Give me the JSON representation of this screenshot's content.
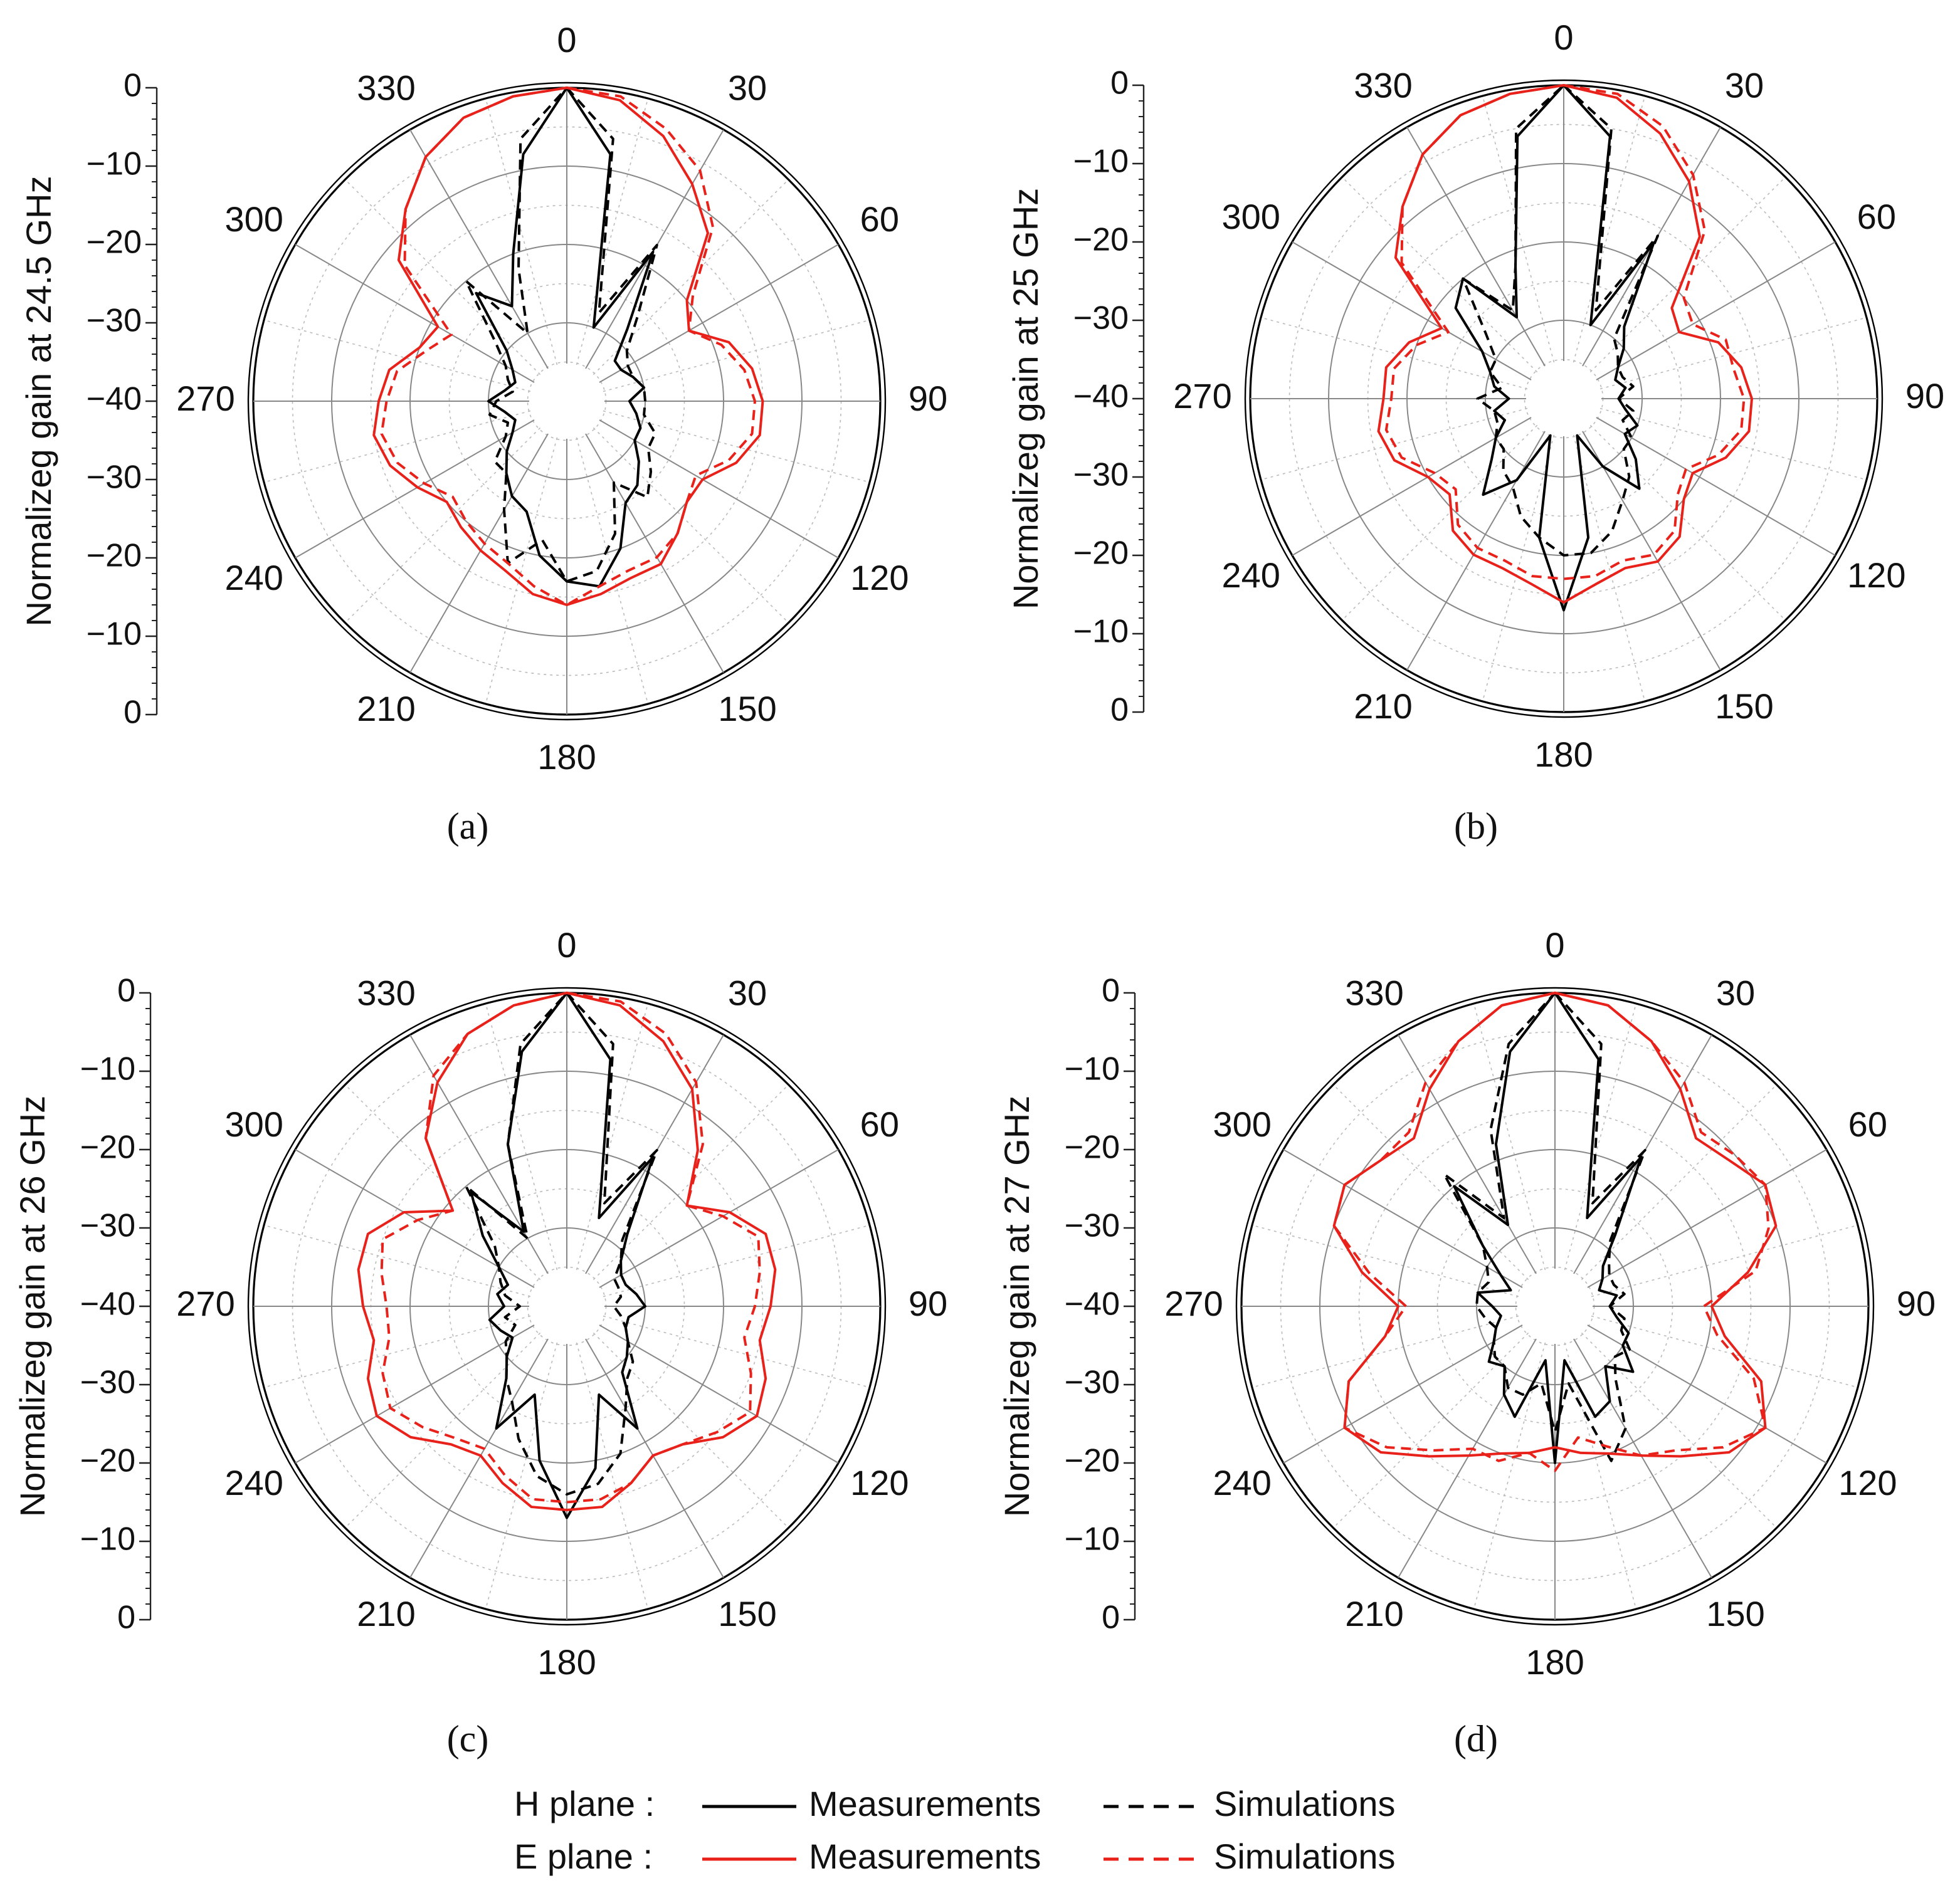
{
  "chart_data": [
    {
      "type": "polar",
      "ylabel": "Normalizeg gain at 24.5 GHz",
      "caption": "(a)",
      "rlim": [
        -40,
        0
      ],
      "rticks": [
        {
          "value": -40,
          "label": "−40"
        },
        {
          "value": -30,
          "label": "−30"
        },
        {
          "value": -20,
          "label": "−20"
        },
        {
          "value": -10,
          "label": "−10"
        },
        0
      ],
      "thetaticks": [
        0,
        30,
        60,
        90,
        120,
        150,
        180,
        210,
        240,
        270,
        300,
        330
      ],
      "theta": [
        0,
        10,
        20,
        30,
        40,
        50,
        60,
        70,
        80,
        90,
        100,
        110,
        120,
        130,
        140,
        150,
        160,
        170,
        180,
        190,
        200,
        210,
        220,
        230,
        240,
        250,
        260,
        270,
        280,
        290,
        300,
        310,
        320,
        330,
        340,
        350
      ],
      "series": [
        {
          "color": "#000000",
          "dash": false,
          "values": [
            0,
            -8,
            -30,
            -18,
            -28,
            -32,
            -32,
            -31,
            -30,
            -32,
            -31,
            -30,
            -30,
            -28,
            -26,
            -25,
            -20,
            -16,
            -17,
            -20,
            -25,
            -26,
            -28,
            -30,
            -32,
            -33,
            -32,
            -30,
            -32,
            -33,
            -32,
            -30,
            -22,
            -26,
            -20,
            -8
          ]
        },
        {
          "color": "#000000",
          "dash": true,
          "values": [
            0,
            -6,
            -28,
            -17,
            -26,
            -30,
            -31,
            -31,
            -30,
            -30,
            -30,
            -28,
            -28,
            -26,
            -24,
            -28,
            -22,
            -18,
            -17,
            -22,
            -18,
            -24,
            -28,
            -28,
            -31,
            -32,
            -30,
            -31,
            -33,
            -32,
            -31,
            -28,
            -20,
            -30,
            -22,
            -6
          ]
        },
        {
          "color": "#e8221a",
          "dash": false,
          "values": [
            0,
            -1,
            -4,
            -8,
            -12,
            -20,
            -22,
            -18,
            -16,
            -15,
            -15,
            -17,
            -20,
            -20,
            -18,
            -16,
            -16,
            -15,
            -14,
            -15,
            -17,
            -18,
            -19,
            -20,
            -18,
            -16,
            -15,
            -16,
            -17,
            -20,
            -21,
            -12,
            -8,
            -4,
            -1.5,
            -0.5
          ]
        },
        {
          "color": "#e8221a",
          "dash": true,
          "values": [
            0,
            -0.5,
            -3,
            -6,
            -11,
            -19,
            -22,
            -19,
            -17,
            -16,
            -16,
            -18,
            -21,
            -20,
            -18,
            -17,
            -17,
            -16,
            -14,
            -16,
            -18,
            -19,
            -20,
            -21,
            -19,
            -17,
            -16,
            -17,
            -18,
            -21,
            -23,
            -13,
            -8,
            -4,
            -1.5,
            -0.5
          ]
        }
      ]
    },
    {
      "type": "polar",
      "ylabel": "Normalizeg gain at 25 GHz",
      "caption": "(b)",
      "rlim": [
        -40,
        0
      ],
      "rticks": [
        {
          "value": -40,
          "label": "−40"
        },
        {
          "value": -30,
          "label": "−30"
        },
        {
          "value": -20,
          "label": "−20"
        },
        {
          "value": -10,
          "label": "−10"
        },
        0
      ],
      "thetaticks": [
        0,
        30,
        60,
        90,
        120,
        150,
        180,
        210,
        240,
        270,
        300,
        330
      ],
      "theta": [
        0,
        10,
        20,
        30,
        40,
        50,
        60,
        70,
        80,
        90,
        100,
        110,
        120,
        130,
        140,
        150,
        160,
        170,
        180,
        190,
        200,
        210,
        220,
        230,
        240,
        250,
        260,
        270,
        280,
        290,
        300,
        310,
        320,
        330,
        340,
        350
      ],
      "series": [
        {
          "color": "#000000",
          "dash": false,
          "values": [
            0,
            -6,
            -30,
            -17,
            -28,
            -30,
            -32,
            -33,
            -32,
            -33,
            -32,
            -30,
            -31,
            -28,
            -25,
            -30,
            -35,
            -22,
            -13,
            -22,
            -35,
            -28,
            -24,
            -28,
            -30,
            -32,
            -31,
            -33,
            -31,
            -30,
            -28,
            -22,
            -20,
            -28,
            -22,
            -6
          ]
        },
        {
          "color": "#000000",
          "dash": true,
          "values": [
            0,
            -5,
            -28,
            -16,
            -30,
            -31,
            -32,
            -32,
            -31,
            -33,
            -31,
            -32,
            -30,
            -30,
            -27,
            -25,
            -22,
            -20,
            -20,
            -22,
            -24,
            -27,
            -28,
            -30,
            -30,
            -31,
            -31,
            -29,
            -32,
            -30,
            -30,
            -27,
            -20,
            -27,
            -22,
            -5
          ]
        },
        {
          "color": "#e8221a",
          "dash": false,
          "values": [
            0,
            -1,
            -4,
            -8,
            -13,
            -22,
            -23,
            -19,
            -17,
            -16,
            -16,
            -18,
            -21,
            -20,
            -17,
            -16,
            -17,
            -16,
            -14,
            -16,
            -17,
            -17,
            -18,
            -21,
            -20,
            -17,
            -16,
            -17,
            -17,
            -19,
            -22,
            -12,
            -8,
            -4,
            -1.5,
            -0.5
          ]
        },
        {
          "color": "#e8221a",
          "dash": true,
          "values": [
            0,
            -0.5,
            -3,
            -7,
            -12,
            -20,
            -21,
            -18,
            -18,
            -17,
            -17,
            -19,
            -22,
            -21,
            -18,
            -17,
            -18,
            -17,
            -17,
            -17,
            -18,
            -18,
            -19,
            -22,
            -21,
            -18,
            -17,
            -18,
            -18,
            -20,
            -23,
            -13,
            -8,
            -4,
            -1.5,
            -0.5
          ]
        }
      ]
    },
    {
      "type": "polar",
      "ylabel": "Normalizeg gain at 26 GHz",
      "caption": "(c)",
      "rlim": [
        -40,
        0
      ],
      "rticks": [
        {
          "value": -40,
          "label": "−40"
        },
        {
          "value": -30,
          "label": "−30"
        },
        {
          "value": -20,
          "label": "−20"
        },
        {
          "value": -10,
          "label": "−10"
        },
        0
      ],
      "thetaticks": [
        0,
        30,
        60,
        90,
        120,
        150,
        180,
        210,
        240,
        270,
        300,
        330
      ],
      "theta": [
        0,
        10,
        20,
        30,
        40,
        50,
        60,
        70,
        80,
        90,
        100,
        110,
        120,
        130,
        140,
        150,
        160,
        170,
        180,
        190,
        200,
        210,
        220,
        230,
        240,
        250,
        260,
        270,
        280,
        290,
        300,
        310,
        320,
        330,
        340,
        350
      ],
      "series": [
        {
          "color": "#000000",
          "dash": false,
          "values": [
            0,
            -8,
            -28,
            -18,
            -28,
            -31,
            -32,
            -32,
            -31,
            -30,
            -32,
            -32,
            -31,
            -30,
            -29,
            -22,
            -28,
            -19,
            -13,
            -20,
            -28,
            -22,
            -28,
            -30,
            -32,
            -31,
            -30,
            -32,
            -31,
            -32,
            -30,
            -26,
            -21,
            -29,
            -18,
            -7
          ]
        },
        {
          "color": "#000000",
          "dash": true,
          "values": [
            0,
            -6,
            -26,
            -17,
            -29,
            -31,
            -33,
            -33,
            -33,
            -34,
            -33,
            -32,
            -31,
            -29,
            -28,
            -25,
            -20,
            -17,
            -16,
            -18,
            -22,
            -26,
            -28,
            -30,
            -31,
            -33,
            -32,
            -34,
            -32,
            -31,
            -30,
            -28,
            -20,
            -30,
            -18,
            -6
          ]
        },
        {
          "color": "#e8221a",
          "dash": false,
          "values": [
            0,
            -1,
            -4,
            -8,
            -14,
            -20,
            -16,
            -13,
            -13,
            -14,
            -15,
            -13,
            -12,
            -14,
            -17,
            -18,
            -16,
            -14,
            -14,
            -14,
            -16,
            -18,
            -17,
            -14,
            -12,
            -13,
            -15,
            -14,
            -13,
            -13,
            -16,
            -21,
            -12,
            -7,
            -3,
            -1
          ]
        },
        {
          "color": "#e8221a",
          "dash": true,
          "values": [
            0,
            -0.5,
            -3,
            -7,
            -13,
            -20,
            -17,
            -14,
            -15,
            -16,
            -17,
            -15,
            -13,
            -15,
            -17,
            -18,
            -16,
            -15,
            -15,
            -15,
            -17,
            -19,
            -18,
            -16,
            -14,
            -15,
            -17,
            -17,
            -16,
            -15,
            -18,
            -21,
            -12,
            -6,
            -3,
            -1
          ]
        }
      ]
    },
    {
      "type": "polar",
      "ylabel": "Normalizeg gain at 27 GHz",
      "caption": "(d)",
      "rlim": [
        -40,
        0
      ],
      "rticks": [
        {
          "value": -40,
          "label": "−40"
        },
        {
          "value": -30,
          "label": "−30"
        },
        {
          "value": -20,
          "label": "−20"
        },
        {
          "value": -10,
          "label": "−10"
        },
        0
      ],
      "thetaticks": [
        0,
        30,
        60,
        90,
        120,
        150,
        180,
        210,
        240,
        270,
        300,
        330
      ],
      "theta": [
        0,
        10,
        20,
        30,
        40,
        50,
        60,
        70,
        80,
        90,
        100,
        110,
        120,
        130,
        140,
        150,
        160,
        170,
        180,
        190,
        200,
        210,
        220,
        230,
        240,
        250,
        260,
        270,
        280,
        290,
        300,
        310,
        320,
        330,
        340,
        350
      ],
      "series": [
        {
          "color": "#000000",
          "dash": false,
          "values": [
            0,
            -8,
            -28,
            -18,
            -28,
            -32,
            -33,
            -34,
            -32,
            -33,
            -32,
            -30,
            -30,
            -27,
            -30,
            -26,
            -25,
            -33,
            -20,
            -33,
            -25,
            -27,
            -30,
            -29,
            -31,
            -32,
            -33,
            -32,
            -30,
            -34,
            -32,
            -28,
            -20,
            -28,
            -18,
            -7
          ]
        },
        {
          "color": "#000000",
          "dash": true,
          "values": [
            0,
            -6,
            -26,
            -17,
            -29,
            -31,
            -32,
            -32,
            -31,
            -33,
            -31,
            -31,
            -29,
            -30,
            -28,
            -22,
            -19,
            -30,
            -24,
            -30,
            -28,
            -28,
            -30,
            -30,
            -31,
            -32,
            -31,
            -30,
            -30,
            -31,
            -30,
            -28,
            -18,
            -27,
            -16,
            -6
          ]
        },
        {
          "color": "#e8221a",
          "dash": false,
          "values": [
            0,
            -1,
            -4,
            -8,
            -12,
            -11,
            -9,
            -10,
            -15,
            -20,
            -18,
            -12,
            -9,
            -11,
            -15,
            -18,
            -20,
            -21,
            -22,
            -21,
            -20,
            -18,
            -15,
            -11,
            -9,
            -12,
            -18,
            -20,
            -15,
            -10,
            -9,
            -11,
            -12,
            -8,
            -4,
            -1
          ]
        },
        {
          "color": "#e8221a",
          "dash": true,
          "values": [
            0,
            -1,
            -4,
            -7,
            -11,
            -10,
            -9,
            -11,
            -14,
            -21,
            -19,
            -13,
            -9,
            -12,
            -16,
            -18,
            -21,
            -23,
            -19,
            -21,
            -19,
            -19,
            -16,
            -12,
            -9,
            -12,
            -18,
            -21,
            -16,
            -10,
            -9,
            -11,
            -11,
            -7,
            -4,
            -1
          ]
        }
      ]
    }
  ],
  "legend": {
    "rows": [
      {
        "label": "H plane :",
        "items": [
          {
            "name": "Measurements",
            "color": "#000000",
            "dash": false
          },
          {
            "name": "Simulations",
            "color": "#000000",
            "dash": true
          }
        ]
      },
      {
        "label": "E plane :",
        "items": [
          {
            "name": "Measurements",
            "color": "#e8221a",
            "dash": false
          },
          {
            "name": "Simulations",
            "color": "#e8221a",
            "dash": true
          }
        ]
      }
    ]
  }
}
